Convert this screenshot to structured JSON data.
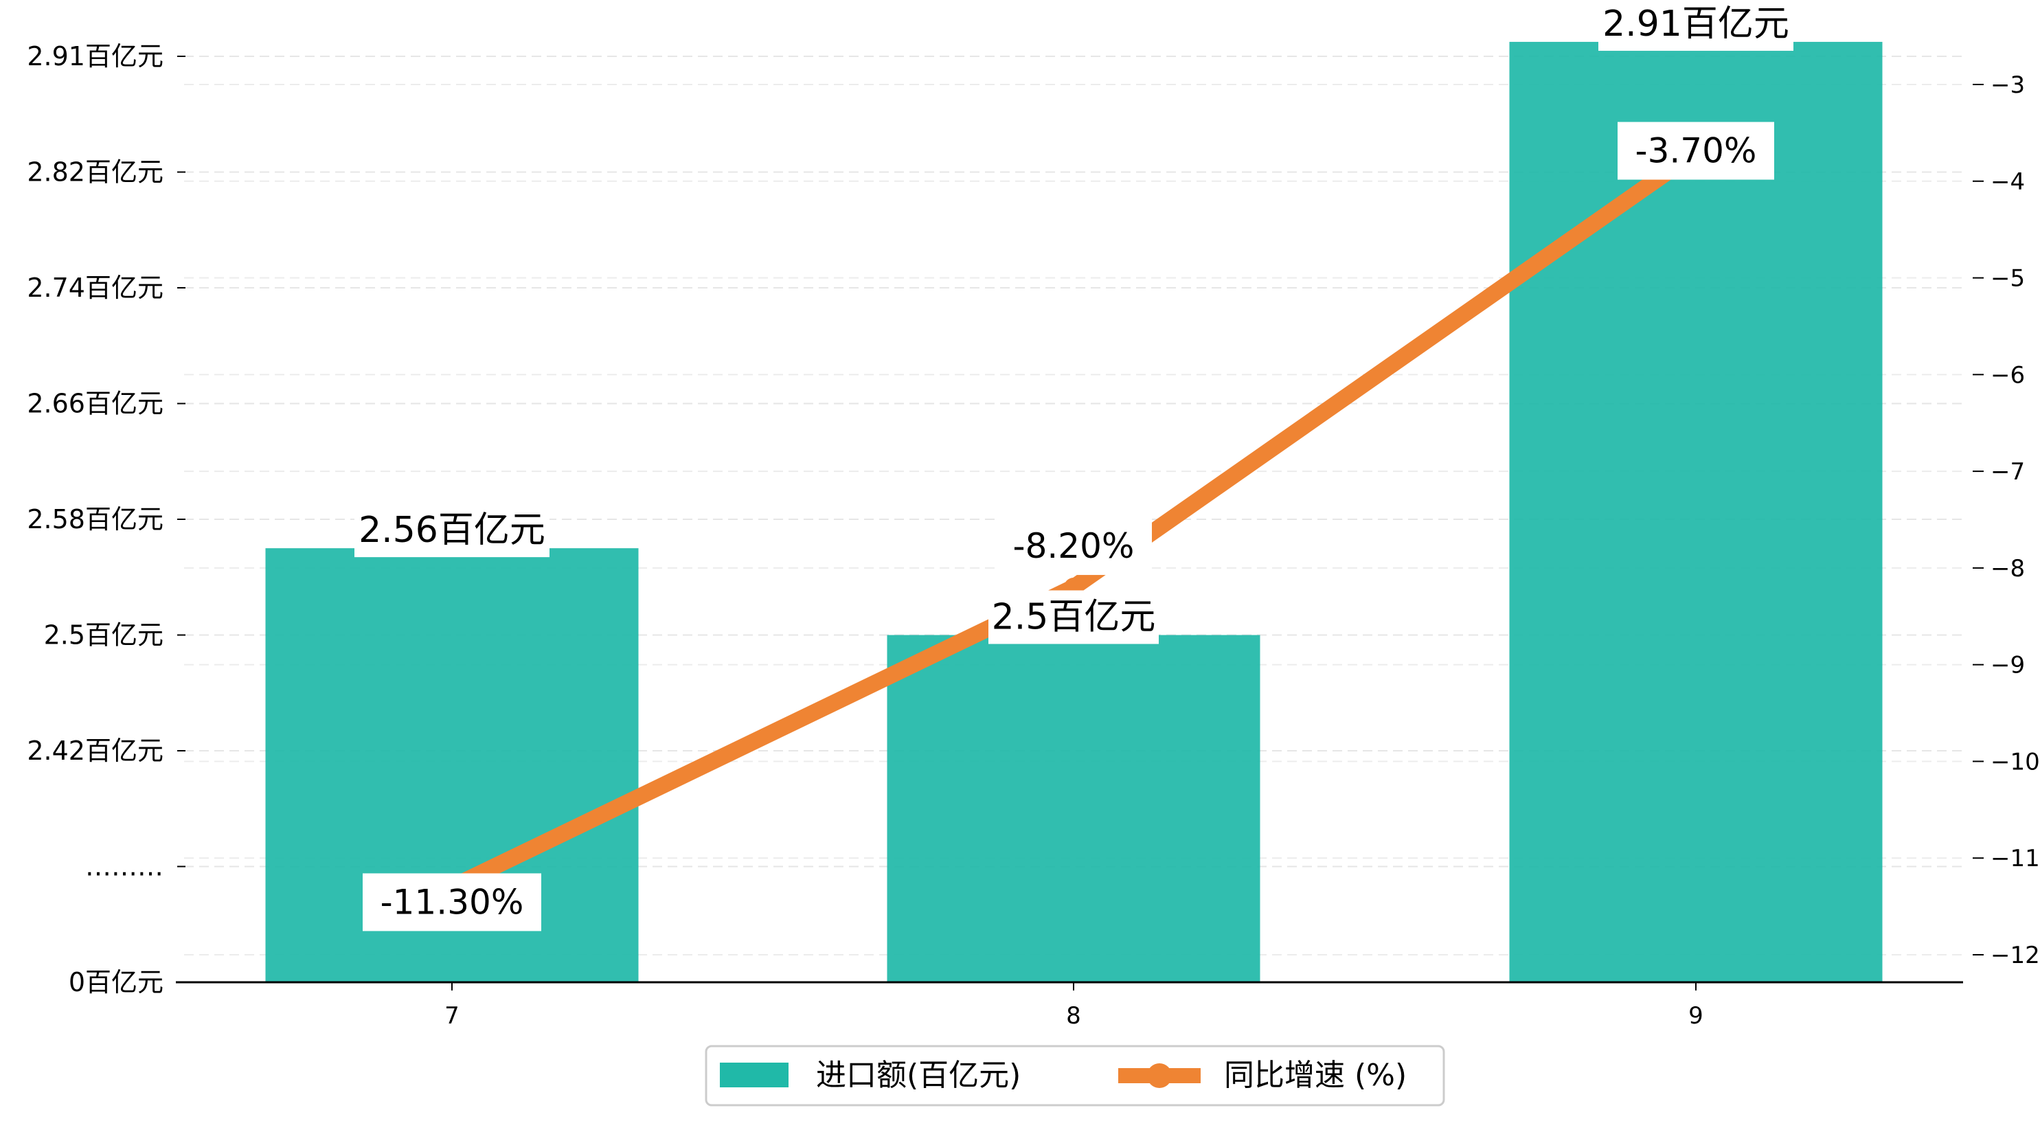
{
  "chart_data": {
    "type": "bar+line",
    "categories": [
      "7",
      "8",
      "9"
    ],
    "bar_series": {
      "name": "进口额(百亿元)",
      "values": [
        2.56,
        2.5,
        2.91
      ],
      "labels": [
        "2.56百亿元",
        "2.5百亿元",
        "2.91百亿元"
      ],
      "color": "#20b9a8"
    },
    "line_series": {
      "name": "同比增速 (%)",
      "values": [
        -11.3,
        -8.2,
        -3.7
      ],
      "labels": [
        "-11.30%",
        "-8.20%",
        "-3.70%"
      ],
      "color": "#ef8433"
    },
    "y_left": {
      "ticks": [
        {
          "value": 0,
          "label": "0百亿元"
        },
        {
          "value": 2.34,
          "label": "………"
        },
        {
          "value": 2.42,
          "label": "2.42百亿元"
        },
        {
          "value": 2.5,
          "label": "2.5百亿元"
        },
        {
          "value": 2.58,
          "label": "2.58百亿元"
        },
        {
          "value": 2.66,
          "label": "2.66百亿元"
        },
        {
          "value": 2.74,
          "label": "2.74百亿元"
        },
        {
          "value": 2.82,
          "label": "2.82百亿元"
        },
        {
          "value": 2.91,
          "label": "2.91百亿元"
        }
      ],
      "broken_axis": true
    },
    "y_right": {
      "ticks": [
        -12,
        -11,
        -10,
        -9,
        -8,
        -7,
        -6,
        -5,
        -4,
        -3
      ],
      "tick_labels": [
        "−12",
        "−11",
        "−10",
        "−9",
        "−8",
        "−7",
        "−6",
        "−5",
        "−4",
        "−3"
      ],
      "ylim": [
        -12.3,
        -2.7
      ]
    },
    "grid": true,
    "legend_position": "bottom-center",
    "title": "",
    "xlabel": "",
    "ylabel": ""
  }
}
